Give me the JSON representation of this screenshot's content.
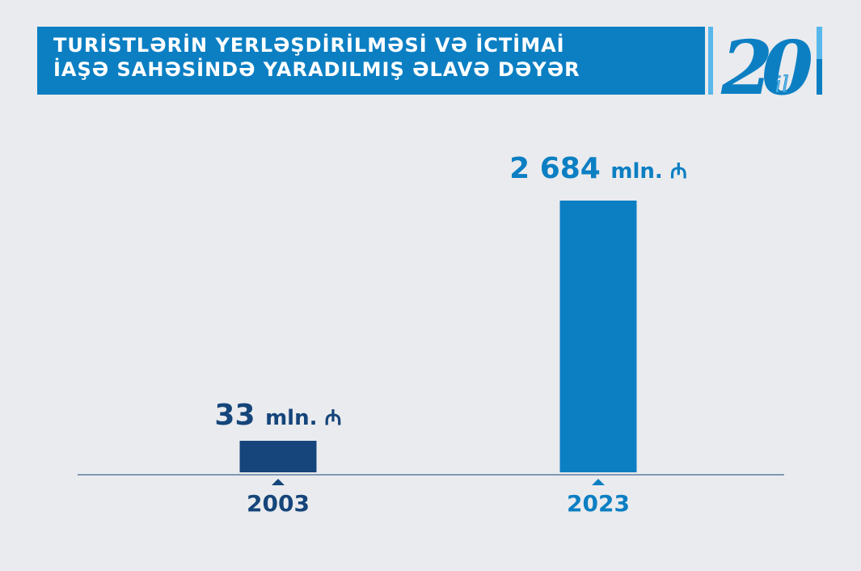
{
  "header": {
    "title_line1": "TURİSTLƏRİN YERLƏŞDİRİLMƏSİ VƏ İCTİMAİ",
    "title_line2": "İAŞƏ SAHƏSİNDƏ YARADILMIŞ ƏLAVƏ DƏYƏR"
  },
  "logo": {
    "number": "20",
    "word": "il"
  },
  "colors": {
    "dark": "#15457a",
    "accent": "#0c7fc3",
    "light": "#58b8ec",
    "background": "#eaebee"
  },
  "chart_data": {
    "type": "bar",
    "categories": [
      "2003",
      "2023"
    ],
    "values": [
      33,
      2684
    ],
    "unit": "mln. ₼",
    "data_labels": [
      "33 mln. ₼",
      "2 684 mln. ₼"
    ],
    "bar_colors": [
      "#15457a",
      "#0c7fc3"
    ],
    "grid": false,
    "legend": "none"
  }
}
